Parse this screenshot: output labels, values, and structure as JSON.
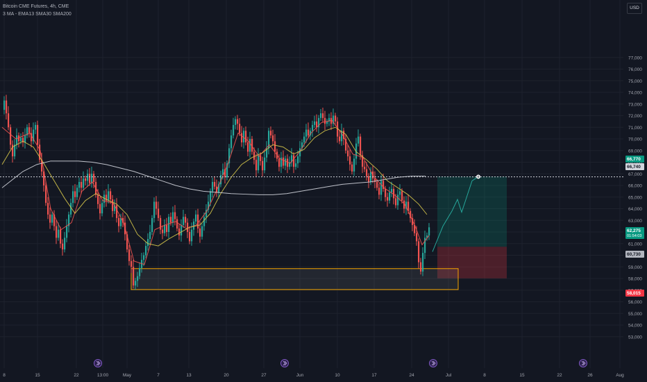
{
  "header": {
    "title": "Bitcoin CME Futures, 4h, CME",
    "indicators": "3 MA - EMA13 SMA30 SMA200"
  },
  "currency_button": "USD",
  "colors": {
    "background": "#131722",
    "up": "#26a69a",
    "down": "#ef5350",
    "ema13": "#ef5350",
    "sma30": "#d4c44a",
    "sma200": "#d1d4dc",
    "zone_border": "#f7a600",
    "target": "#089981",
    "stop": "#f23645",
    "projection": "#26a69a"
  },
  "price_tags": {
    "target": "66,770",
    "dotted_line": "66,740",
    "current": "62,275",
    "countdown": "01:54:03",
    "entry": "60,730",
    "stop": "58,015"
  },
  "event_icons": [
    "lightning-event",
    "lightning-event",
    "lightning-event",
    "lightning-event"
  ],
  "chart_data": {
    "type": "candlestick",
    "title": "Bitcoin CME Futures, 4h, CME",
    "ylim": [
      52000,
      77500
    ],
    "y_ticks": [
      53000,
      54000,
      55000,
      56000,
      57000,
      58000,
      59000,
      60000,
      61000,
      62000,
      63000,
      64000,
      65000,
      66000,
      67000,
      68000,
      69000,
      70000,
      71000,
      72000,
      73000,
      74000,
      75000,
      76000,
      77000
    ],
    "y_tick_labels": [
      "53,000",
      "54,000",
      "55,000",
      "56,000",
      "57,000",
      "58,000",
      "59,000",
      "60,000",
      "61,000",
      "62,000",
      "63,000",
      "64,000",
      "65,000",
      "66,000",
      "67,000",
      "68,000",
      "69,000",
      "70,000",
      "71,000",
      "72,000",
      "73,000",
      "74,000",
      "75,000",
      "76,000",
      "77,000"
    ],
    "x_tick_labels": [
      "8",
      "15",
      "22",
      "13:00",
      "May",
      "7",
      "13",
      "20",
      "27",
      "Jun",
      "10",
      "17",
      "24",
      "Jul",
      "8",
      "15",
      "22",
      "26",
      "Aug"
    ],
    "close_path": [
      [
        0,
        72500
      ],
      [
        3,
        73300
      ],
      [
        6,
        72200
      ],
      [
        9,
        71000
      ],
      [
        12,
        69500
      ],
      [
        15,
        68500
      ],
      [
        18,
        69500
      ],
      [
        21,
        70300
      ],
      [
        24,
        69800
      ],
      [
        27,
        70100
      ],
      [
        30,
        69700
      ],
      [
        33,
        70300
      ],
      [
        36,
        71000
      ],
      [
        39,
        70500
      ],
      [
        42,
        69800
      ],
      [
        45,
        70800
      ],
      [
        48,
        71200
      ],
      [
        51,
        69500
      ],
      [
        54,
        68200
      ],
      [
        57,
        67200
      ],
      [
        60,
        66000
      ],
      [
        63,
        64500
      ],
      [
        66,
        63500
      ],
      [
        69,
        62800
      ],
      [
        72,
        63500
      ],
      [
        75,
        62500
      ],
      [
        78,
        61500
      ],
      [
        81,
        62200
      ],
      [
        84,
        61000
      ],
      [
        87,
        60500
      ],
      [
        90,
        61500
      ],
      [
        93,
        62500
      ],
      [
        96,
        63500
      ],
      [
        99,
        64500
      ],
      [
        102,
        65500
      ],
      [
        105,
        65000
      ],
      [
        108,
        65800
      ],
      [
        111,
        66300
      ],
      [
        114,
        65800
      ],
      [
        117,
        66600
      ],
      [
        120,
        66400
      ],
      [
        123,
        67000
      ],
      [
        126,
        66200
      ],
      [
        129,
        67000
      ],
      [
        132,
        66300
      ],
      [
        135,
        65200
      ],
      [
        138,
        64400
      ],
      [
        141,
        63600
      ],
      [
        144,
        64500
      ],
      [
        147,
        65200
      ],
      [
        150,
        64700
      ],
      [
        153,
        65500
      ],
      [
        156,
        64800
      ],
      [
        159,
        63800
      ],
      [
        162,
        64300
      ],
      [
        165,
        63200
      ],
      [
        168,
        62500
      ],
      [
        171,
        63200
      ],
      [
        174,
        62800
      ],
      [
        177,
        61800
      ],
      [
        180,
        60500
      ],
      [
        183,
        59500
      ],
      [
        186,
        59000
      ],
      [
        189,
        57400
      ],
      [
        192,
        57800
      ],
      [
        195,
        58200
      ],
      [
        198,
        58900
      ],
      [
        201,
        59600
      ],
      [
        204,
        60000
      ],
      [
        207,
        60800
      ],
      [
        210,
        61400
      ],
      [
        213,
        62000
      ],
      [
        216,
        63200
      ],
      [
        219,
        64600
      ],
      [
        222,
        64000
      ],
      [
        225,
        63200
      ],
      [
        228,
        62200
      ],
      [
        231,
        61900
      ],
      [
        234,
        62600
      ],
      [
        237,
        62000
      ],
      [
        240,
        63300
      ],
      [
        243,
        62800
      ],
      [
        246,
        63700
      ],
      [
        249,
        63100
      ],
      [
        252,
        62300
      ],
      [
        255,
        61700
      ],
      [
        258,
        62600
      ],
      [
        261,
        63300
      ],
      [
        264,
        62800
      ],
      [
        267,
        62000
      ],
      [
        270,
        61200
      ],
      [
        273,
        62200
      ],
      [
        276,
        62900
      ],
      [
        279,
        63500
      ],
      [
        282,
        62300
      ],
      [
        285,
        61600
      ],
      [
        288,
        62500
      ],
      [
        291,
        63300
      ],
      [
        294,
        63900
      ],
      [
        297,
        64600
      ],
      [
        300,
        65500
      ],
      [
        303,
        66300
      ],
      [
        306,
        65900
      ],
      [
        309,
        65400
      ],
      [
        312,
        66100
      ],
      [
        315,
        66900
      ],
      [
        318,
        67400
      ],
      [
        321,
        66700
      ],
      [
        324,
        67900
      ],
      [
        327,
        69200
      ],
      [
        330,
        70300
      ],
      [
        333,
        71200
      ],
      [
        336,
        71700
      ],
      [
        339,
        71300
      ],
      [
        342,
        70500
      ],
      [
        345,
        69700
      ],
      [
        348,
        70700
      ],
      [
        351,
        69700
      ],
      [
        354,
        68900
      ],
      [
        357,
        70000
      ],
      [
        360,
        68900
      ],
      [
        363,
        68200
      ],
      [
        366,
        67300
      ],
      [
        369,
        68600
      ],
      [
        372,
        68100
      ],
      [
        375,
        67300
      ],
      [
        378,
        68400
      ],
      [
        381,
        69200
      ],
      [
        384,
        70700
      ],
      [
        387,
        70300
      ],
      [
        390,
        69800
      ],
      [
        393,
        68900
      ],
      [
        396,
        68300
      ],
      [
        399,
        67600
      ],
      [
        402,
        68400
      ],
      [
        405,
        67700
      ],
      [
        408,
        68300
      ],
      [
        411,
        67600
      ],
      [
        414,
        68000
      ],
      [
        417,
        68600
      ],
      [
        420,
        67600
      ],
      [
        423,
        67900
      ],
      [
        426,
        68500
      ],
      [
        429,
        69200
      ],
      [
        432,
        69700
      ],
      [
        435,
        70200
      ],
      [
        438,
        70800
      ],
      [
        441,
        70300
      ],
      [
        444,
        70700
      ],
      [
        447,
        71200
      ],
      [
        450,
        71500
      ],
      [
        453,
        71000
      ],
      [
        456,
        71800
      ],
      [
        459,
        72200
      ],
      [
        462,
        71800
      ],
      [
        465,
        71300
      ],
      [
        468,
        71500
      ],
      [
        471,
        71800
      ],
      [
        474,
        71300
      ],
      [
        477,
        72000
      ],
      [
        480,
        71500
      ],
      [
        483,
        70200
      ],
      [
        486,
        69800
      ],
      [
        489,
        70700
      ],
      [
        492,
        70000
      ],
      [
        495,
        69000
      ],
      [
        498,
        68500
      ],
      [
        501,
        67800
      ],
      [
        504,
        67200
      ],
      [
        507,
        68300
      ],
      [
        510,
        69600
      ],
      [
        513,
        70200
      ],
      [
        516,
        68600
      ],
      [
        519,
        67600
      ],
      [
        522,
        67400
      ],
      [
        525,
        66800
      ],
      [
        528,
        66300
      ],
      [
        531,
        67200
      ],
      [
        534,
        66600
      ],
      [
        537,
        66300
      ],
      [
        540,
        65800
      ],
      [
        543,
        65200
      ],
      [
        546,
        66400
      ],
      [
        549,
        65700
      ],
      [
        552,
        65000
      ],
      [
        555,
        64700
      ],
      [
        558,
        65400
      ],
      [
        561,
        65700
      ],
      [
        564,
        64900
      ],
      [
        567,
        64300
      ],
      [
        570,
        65200
      ],
      [
        573,
        65500
      ],
      [
        576,
        64700
      ],
      [
        579,
        64000
      ],
      [
        582,
        64600
      ],
      [
        585,
        63800
      ],
      [
        588,
        63200
      ],
      [
        591,
        62600
      ],
      [
        594,
        61900
      ],
      [
        597,
        61200
      ],
      [
        600,
        59400
      ],
      [
        603,
        58600
      ],
      [
        606,
        60200
      ],
      [
        609,
        61500
      ],
      [
        612,
        61700
      ],
      [
        615,
        62400
      ]
    ],
    "series": [
      {
        "name": "EMA13",
        "points": [
          [
            0,
            71000
          ],
          [
            20,
            70000
          ],
          [
            40,
            70500
          ],
          [
            55,
            69000
          ],
          [
            70,
            64000
          ],
          [
            85,
            62200
          ],
          [
            100,
            62800
          ],
          [
            115,
            65500
          ],
          [
            130,
            66300
          ],
          [
            145,
            64700
          ],
          [
            160,
            64500
          ],
          [
            175,
            62800
          ],
          [
            190,
            59500
          ],
          [
            205,
            59200
          ],
          [
            220,
            62200
          ],
          [
            235,
            62600
          ],
          [
            250,
            62900
          ],
          [
            265,
            62300
          ],
          [
            280,
            62600
          ],
          [
            295,
            63800
          ],
          [
            310,
            65700
          ],
          [
            325,
            67800
          ],
          [
            340,
            70500
          ],
          [
            355,
            69800
          ],
          [
            370,
            68500
          ],
          [
            385,
            69500
          ],
          [
            400,
            68300
          ],
          [
            415,
            67900
          ],
          [
            430,
            69000
          ],
          [
            445,
            70500
          ],
          [
            460,
            71400
          ],
          [
            475,
            71600
          ],
          [
            490,
            70400
          ],
          [
            505,
            68700
          ],
          [
            520,
            68400
          ],
          [
            535,
            66800
          ],
          [
            550,
            65800
          ],
          [
            565,
            65200
          ],
          [
            580,
            64400
          ],
          [
            595,
            62500
          ],
          [
            605,
            60900
          ],
          [
            615,
            61700
          ]
        ]
      },
      {
        "name": "SMA30",
        "points": [
          [
            0,
            67800
          ],
          [
            15,
            69300
          ],
          [
            30,
            69800
          ],
          [
            45,
            69300
          ],
          [
            60,
            67900
          ],
          [
            75,
            66400
          ],
          [
            90,
            64900
          ],
          [
            105,
            63600
          ],
          [
            120,
            64700
          ],
          [
            135,
            65300
          ],
          [
            150,
            64800
          ],
          [
            165,
            64400
          ],
          [
            180,
            63500
          ],
          [
            195,
            61800
          ],
          [
            210,
            61000
          ],
          [
            225,
            60800
          ],
          [
            240,
            61400
          ],
          [
            255,
            61900
          ],
          [
            270,
            62400
          ],
          [
            285,
            62600
          ],
          [
            300,
            63600
          ],
          [
            315,
            65300
          ],
          [
            330,
            66700
          ],
          [
            345,
            67800
          ],
          [
            360,
            68400
          ],
          [
            375,
            68800
          ],
          [
            390,
            69500
          ],
          [
            405,
            69300
          ],
          [
            420,
            68700
          ],
          [
            435,
            69100
          ],
          [
            450,
            70100
          ],
          [
            465,
            70700
          ],
          [
            480,
            71000
          ],
          [
            495,
            70400
          ],
          [
            510,
            68900
          ],
          [
            525,
            68200
          ],
          [
            540,
            67400
          ],
          [
            555,
            66400
          ],
          [
            570,
            65800
          ],
          [
            585,
            65200
          ],
          [
            600,
            64400
          ],
          [
            612,
            63500
          ]
        ]
      },
      {
        "name": "SMA200",
        "points": [
          [
            0,
            65800
          ],
          [
            15,
            66500
          ],
          [
            30,
            67200
          ],
          [
            50,
            67800
          ],
          [
            70,
            68100
          ],
          [
            90,
            68100
          ],
          [
            110,
            68100
          ],
          [
            130,
            68000
          ],
          [
            150,
            67800
          ],
          [
            170,
            67500
          ],
          [
            190,
            67200
          ],
          [
            210,
            66800
          ],
          [
            230,
            66400
          ],
          [
            250,
            66000
          ],
          [
            270,
            65700
          ],
          [
            290,
            65500
          ],
          [
            310,
            65400
          ],
          [
            330,
            65300
          ],
          [
            350,
            65250
          ],
          [
            370,
            65200
          ],
          [
            390,
            65200
          ],
          [
            410,
            65300
          ],
          [
            430,
            65500
          ],
          [
            450,
            65700
          ],
          [
            470,
            65900
          ],
          [
            490,
            66100
          ],
          [
            510,
            66200
          ],
          [
            530,
            66300
          ],
          [
            550,
            66500
          ],
          [
            570,
            66700
          ],
          [
            590,
            66800
          ],
          [
            610,
            66800
          ]
        ]
      }
    ],
    "annotations": {
      "demand_zone": {
        "x0": 186,
        "x1": 657,
        "y_top": 58850,
        "y_bottom": 57050
      },
      "long_position": {
        "x0": 627,
        "x1": 727,
        "entry": 60730,
        "target": 66770,
        "stop": 58015
      },
      "projection_path": [
        [
          620,
          60300
        ],
        [
          635,
          62500
        ],
        [
          648,
          63800
        ],
        [
          656,
          64800
        ],
        [
          662,
          63700
        ],
        [
          677,
          66400
        ],
        [
          686,
          66750
        ]
      ],
      "dotted_level": 66740
    }
  }
}
